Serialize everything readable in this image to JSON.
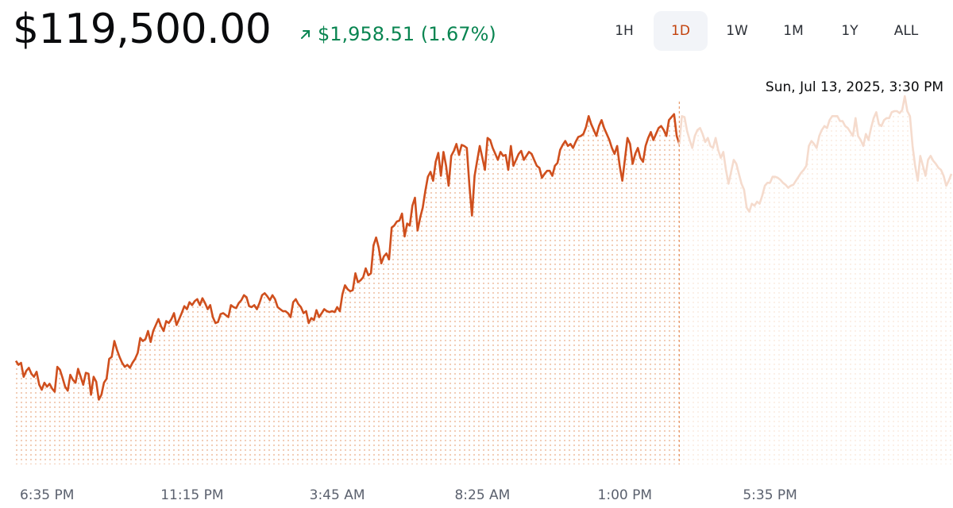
{
  "header": {
    "price": "$119,500.00",
    "change": "$1,958.51 (1.67%)",
    "change_color": "#098551"
  },
  "ranges": [
    {
      "label": "1H",
      "active": false
    },
    {
      "label": "1D",
      "active": true
    },
    {
      "label": "1W",
      "active": false
    },
    {
      "label": "1M",
      "active": false
    },
    {
      "label": "1Y",
      "active": false
    },
    {
      "label": "ALL",
      "active": false
    }
  ],
  "tooltip": {
    "timestamp": "Sun, Jul 13, 2025, 3:30 PM"
  },
  "colors": {
    "line": "#cf4f1d",
    "line_faded": "#f5dbcd",
    "fill_dots": "#f0c8b0",
    "accent": "#c3420c"
  },
  "chart_data": {
    "type": "area",
    "title": "",
    "xlabel": "",
    "ylabel": "",
    "x_tick_labels": [
      "6:35 PM",
      "11:15 PM",
      "3:45 AM",
      "8:25 AM",
      "1:00 PM",
      "5:35 PM"
    ],
    "x_tick_index": [
      12,
      68,
      124,
      180,
      235,
      291
    ],
    "hover_index": [
      256
    ],
    "ylim": [
      116500,
      120050
    ],
    "grid": false,
    "values": [
      117540,
      117500,
      117520,
      117380,
      117440,
      117470,
      117410,
      117380,
      117430,
      117300,
      117250,
      117320,
      117280,
      117310,
      117260,
      117230,
      117480,
      117450,
      117370,
      117280,
      117240,
      117400,
      117350,
      117320,
      117460,
      117380,
      117300,
      117420,
      117410,
      117200,
      117380,
      117330,
      117150,
      117200,
      117320,
      117360,
      117560,
      117580,
      117740,
      117650,
      117580,
      117520,
      117480,
      117500,
      117470,
      117520,
      117560,
      117620,
      117770,
      117740,
      117760,
      117840,
      117730,
      117840,
      117900,
      117960,
      117890,
      117840,
      117940,
      117920,
      117960,
      118020,
      117900,
      117960,
      118020,
      118090,
      118060,
      118130,
      118100,
      118140,
      118160,
      118100,
      118170,
      118120,
      118060,
      118100,
      117980,
      117920,
      117930,
      118010,
      118020,
      118000,
      117980,
      118100,
      118080,
      118070,
      118120,
      118150,
      118200,
      118180,
      118090,
      118080,
      118100,
      118060,
      118120,
      118200,
      118220,
      118190,
      118150,
      118200,
      118160,
      118080,
      118060,
      118040,
      118040,
      118020,
      117980,
      118130,
      118160,
      118110,
      118080,
      118020,
      118040,
      117920,
      117970,
      117950,
      118050,
      117980,
      118020,
      118060,
      118040,
      118030,
      118040,
      118030,
      118080,
      118040,
      118210,
      118300,
      118260,
      118240,
      118250,
      118420,
      118330,
      118350,
      118380,
      118470,
      118400,
      118420,
      118700,
      118780,
      118680,
      118520,
      118590,
      118620,
      118560,
      118880,
      118900,
      118940,
      118950,
      119020,
      118790,
      118920,
      118900,
      119100,
      119180,
      118850,
      118980,
      119080,
      119250,
      119390,
      119440,
      119350,
      119540,
      119630,
      119400,
      119640,
      119500,
      119300,
      119600,
      119650,
      119720,
      119610,
      119710,
      119700,
      119680,
      119300,
      119000,
      119400,
      119550,
      119700,
      119580,
      119460,
      119780,
      119760,
      119680,
      119620,
      119560,
      119640,
      119600,
      119610,
      119460,
      119700,
      119500,
      119560,
      119620,
      119650,
      119560,
      119600,
      119640,
      119620,
      119560,
      119500,
      119480,
      119380,
      119420,
      119450,
      119450,
      119400,
      119500,
      119530,
      119660,
      119710,
      119750,
      119700,
      119720,
      119680,
      119740,
      119790,
      119800,
      119820,
      119890,
      120000,
      119920,
      119860,
      119800,
      119900,
      119960,
      119880,
      119820,
      119760,
      119680,
      119620,
      119700,
      119500,
      119350,
      119560,
      119780,
      119720,
      119520,
      119620,
      119680,
      119580,
      119540,
      119700,
      119780,
      119840,
      119760,
      119820,
      119880,
      119900,
      119860,
      119800,
      119960,
      119990,
      120020,
      119800,
      119720,
      120000,
      119990,
      119850,
      119760,
      119680,
      119800,
      119860,
      119880,
      119820,
      119740,
      119780,
      119700,
      119680,
      119780,
      119660,
      119580,
      119640,
      119460,
      119320,
      119440,
      119560,
      119520,
      119420,
      119320,
      119260,
      119080,
      119040,
      119120,
      119100,
      119140,
      119120,
      119200,
      119300,
      119330,
      119330,
      119390,
      119390,
      119380,
      119360,
      119330,
      119310,
      119280,
      119300,
      119310,
      119350,
      119390,
      119430,
      119460,
      119500,
      119700,
      119750,
      119720,
      119680,
      119800,
      119860,
      119900,
      119880,
      119960,
      120000,
      120000,
      120000,
      119950,
      119950,
      119900,
      119880,
      119840,
      119800,
      119980,
      119800,
      119760,
      119700,
      119820,
      119760,
      119880,
      119980,
      120040,
      119920,
      119900,
      119960,
      119980,
      119980,
      120040,
      120050,
      120050,
      120030,
      120060,
      120200,
      120050,
      120000,
      119700,
      119500,
      119350,
      119600,
      119500,
      119400,
      119560,
      119600,
      119550,
      119520,
      119480,
      119460,
      119400,
      119300,
      119350,
      119420
    ]
  }
}
